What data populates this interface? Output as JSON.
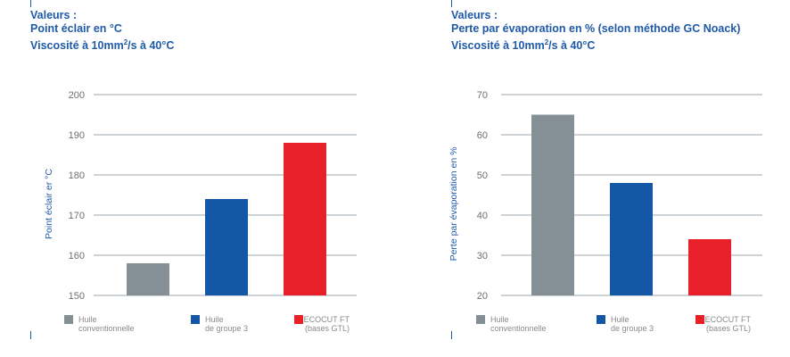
{
  "colors": {
    "title": "#1f5aa8",
    "grid": "#7e8a95",
    "tick": "#6e6e6e"
  },
  "chart_data": [
    {
      "type": "bar",
      "title": [
        "Valeurs :",
        "Point éclair en °C",
        "Viscosité à 10mm²/s à 40°C"
      ],
      "ylabel": "Point éclair er °C",
      "categories": [
        "Huile conventionnelle",
        "Huile de groupe 3",
        "ECOCUT FT (bases GTL)"
      ],
      "legend": [
        [
          "Huile",
          "conventionnelle"
        ],
        [
          "Huile",
          "de groupe 3"
        ],
        [
          "ECOCUT FT",
          "(bases GTL)"
        ]
      ],
      "values": [
        158,
        174,
        188
      ],
      "colors": [
        "#848f96",
        "#1357a6",
        "#e8202a"
      ],
      "ylim": [
        150,
        200
      ],
      "yticks": [
        150,
        160,
        170,
        180,
        190,
        200
      ],
      "grid": true,
      "legend_position": "bottom"
    },
    {
      "type": "bar",
      "title": [
        "Valeurs :",
        "Perte par évaporation en % (selon méthode GC Noack)",
        "Viscosité à 10mm²/s à 40°C"
      ],
      "ylabel": "Perte par évaporation en %",
      "categories": [
        "Huile conventionnelle",
        "Huile de groupe 3",
        "ECOCUT FT (bases GTL)"
      ],
      "legend": [
        [
          "Huile",
          "conventionnelle"
        ],
        [
          "Huile",
          "de groupe 3"
        ],
        [
          "ECOCUT FT",
          "(bases GTL)"
        ]
      ],
      "values": [
        65,
        48,
        34
      ],
      "colors": [
        "#848f96",
        "#1357a6",
        "#e8202a"
      ],
      "ylim": [
        20,
        70
      ],
      "yticks": [
        20,
        30,
        40,
        50,
        60,
        70
      ],
      "grid": true,
      "legend_position": "bottom"
    }
  ]
}
